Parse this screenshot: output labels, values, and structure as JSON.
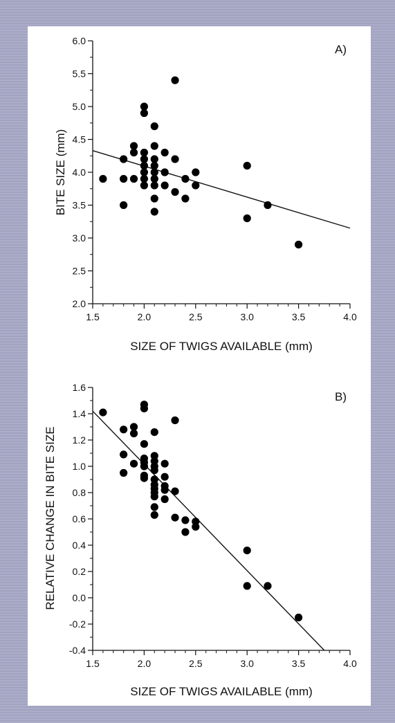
{
  "chart_data": [
    {
      "type": "scatter",
      "panel_label": "A)",
      "xlabel": "SIZE OF TWIGS AVAILABLE (mm)",
      "ylabel": "BITE SIZE (mm)",
      "xlim": [
        1.5,
        4.0
      ],
      "ylim": [
        2.0,
        6.0
      ],
      "xticks": [
        1.5,
        2.0,
        2.5,
        3.0,
        3.5,
        4.0
      ],
      "yticks": [
        2.0,
        2.5,
        3.0,
        3.5,
        4.0,
        4.5,
        5.0,
        5.5,
        6.0
      ],
      "xtick_labels": [
        "1.5",
        "2.0",
        "2.5",
        "3.0",
        "3.5",
        "4.0"
      ],
      "ytick_labels": [
        "2.0",
        "2.5",
        "3.0",
        "3.5",
        "4.0",
        "4.5",
        "5.0",
        "5.5",
        "6.0"
      ],
      "points": [
        [
          1.6,
          3.9
        ],
        [
          1.8,
          4.2
        ],
        [
          1.8,
          3.9
        ],
        [
          1.8,
          3.5
        ],
        [
          1.9,
          4.4
        ],
        [
          1.9,
          4.3
        ],
        [
          1.9,
          3.9
        ],
        [
          2.0,
          5.0
        ],
        [
          2.0,
          4.9
        ],
        [
          2.0,
          4.3
        ],
        [
          2.0,
          4.2
        ],
        [
          2.0,
          4.1
        ],
        [
          2.0,
          4.0
        ],
        [
          2.0,
          3.9
        ],
        [
          2.0,
          3.8
        ],
        [
          2.1,
          4.7
        ],
        [
          2.1,
          4.4
        ],
        [
          2.1,
          4.2
        ],
        [
          2.1,
          4.1
        ],
        [
          2.1,
          4.0
        ],
        [
          2.1,
          3.9
        ],
        [
          2.1,
          3.8
        ],
        [
          2.1,
          3.6
        ],
        [
          2.1,
          3.4
        ],
        [
          2.2,
          4.3
        ],
        [
          2.2,
          4.0
        ],
        [
          2.2,
          3.8
        ],
        [
          2.3,
          5.4
        ],
        [
          2.3,
          4.2
        ],
        [
          2.3,
          3.7
        ],
        [
          2.4,
          3.9
        ],
        [
          2.4,
          3.6
        ],
        [
          2.5,
          4.0
        ],
        [
          2.5,
          3.8
        ],
        [
          3.0,
          4.1
        ],
        [
          3.0,
          3.3
        ],
        [
          3.2,
          3.5
        ],
        [
          3.5,
          2.9
        ]
      ],
      "trendline": [
        [
          1.5,
          4.33
        ],
        [
          4.0,
          3.15
        ]
      ],
      "grid": false,
      "color": "#000000"
    },
    {
      "type": "scatter",
      "panel_label": "B)",
      "xlabel": "SIZE OF TWIGS AVAILABLE (mm)",
      "ylabel": "RELATIVE CHANGE IN BITE SIZE",
      "xlim": [
        1.5,
        4.0
      ],
      "ylim": [
        -0.4,
        1.6
      ],
      "xticks": [
        1.5,
        2.0,
        2.5,
        3.0,
        3.5,
        4.0
      ],
      "yticks": [
        -0.4,
        -0.2,
        0.0,
        0.2,
        0.4,
        0.6,
        0.8,
        1.0,
        1.2,
        1.4,
        1.6
      ],
      "xtick_labels": [
        "1.5",
        "2.0",
        "2.5",
        "3.0",
        "3.5",
        "4.0"
      ],
      "ytick_labels": [
        "-0.4",
        "-0.2",
        "0.0",
        "0.2",
        "0.4",
        "0.6",
        "0.8",
        "1.0",
        "1.2",
        "1.4",
        "1.6"
      ],
      "points": [
        [
          1.6,
          1.41
        ],
        [
          1.8,
          1.28
        ],
        [
          1.8,
          1.09
        ],
        [
          1.8,
          0.95
        ],
        [
          1.9,
          1.3
        ],
        [
          1.9,
          1.25
        ],
        [
          1.9,
          1.02
        ],
        [
          2.0,
          1.47
        ],
        [
          2.0,
          1.44
        ],
        [
          2.0,
          1.17
        ],
        [
          2.0,
          1.06
        ],
        [
          2.0,
          1.03
        ],
        [
          2.0,
          1.0
        ],
        [
          2.0,
          0.93
        ],
        [
          2.0,
          0.91
        ],
        [
          2.1,
          1.26
        ],
        [
          2.1,
          1.08
        ],
        [
          2.1,
          1.04
        ],
        [
          2.1,
          1.0
        ],
        [
          2.1,
          0.97
        ],
        [
          2.1,
          0.9
        ],
        [
          2.1,
          0.86
        ],
        [
          2.1,
          0.83
        ],
        [
          2.1,
          0.8
        ],
        [
          2.1,
          0.77
        ],
        [
          2.1,
          0.69
        ],
        [
          2.1,
          0.63
        ],
        [
          2.2,
          1.02
        ],
        [
          2.2,
          0.92
        ],
        [
          2.2,
          0.85
        ],
        [
          2.2,
          0.82
        ],
        [
          2.2,
          0.75
        ],
        [
          2.3,
          1.35
        ],
        [
          2.3,
          0.81
        ],
        [
          2.3,
          0.61
        ],
        [
          2.4,
          0.59
        ],
        [
          2.4,
          0.5
        ],
        [
          2.5,
          0.58
        ],
        [
          2.5,
          0.54
        ],
        [
          3.0,
          0.36
        ],
        [
          3.0,
          0.09
        ],
        [
          3.2,
          0.09
        ],
        [
          3.5,
          -0.15
        ]
      ],
      "trendline": [
        [
          1.5,
          1.42
        ],
        [
          3.75,
          -0.4
        ]
      ],
      "grid": false,
      "color": "#000000"
    }
  ]
}
